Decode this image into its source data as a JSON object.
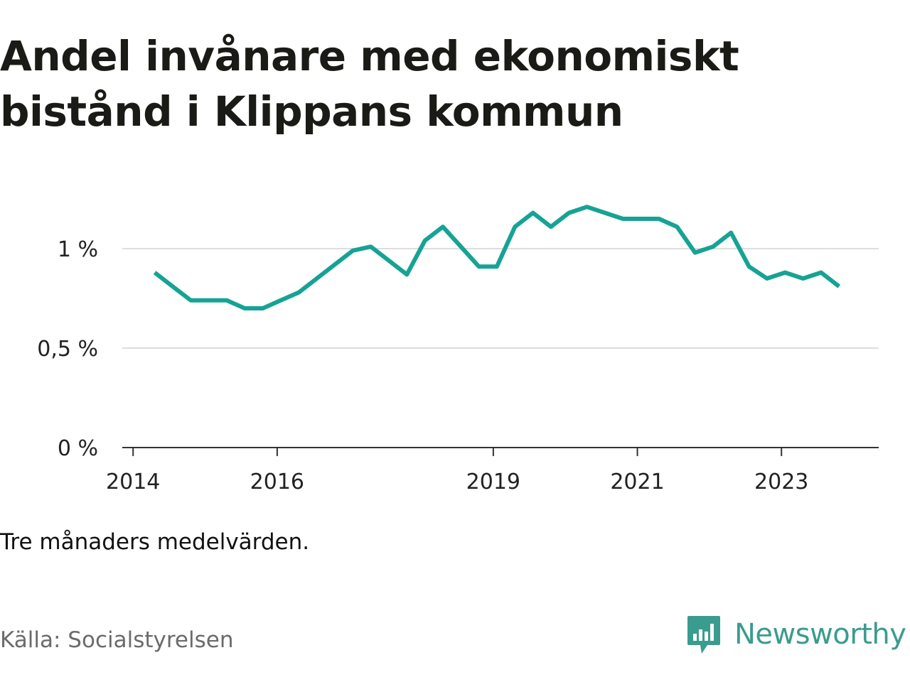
{
  "title": "Andel invånare med ekonomiskt bistånd i Klippans kommun",
  "note": "Tre månaders medelvärden.",
  "source": "Källa: Socialstyrelsen",
  "brand": {
    "name": "Newsworthy",
    "icon": "newsworthy-logo-icon",
    "color": "#3a9c8e"
  },
  "colors": {
    "line": "#16a394",
    "grid": "#dddddd",
    "axis": "#333333"
  },
  "chart_data": {
    "type": "line",
    "title": "Andel invånare med ekonomiskt bistånd i Klippans kommun",
    "xlabel": "",
    "ylabel": "",
    "ylim": [
      0,
      1.25
    ],
    "grid": true,
    "y_ticks": [
      {
        "value": 0,
        "label": "0 %"
      },
      {
        "value": 0.5,
        "label": "0,5 %"
      },
      {
        "value": 1,
        "label": "1 %"
      }
    ],
    "x_ticks": [
      {
        "value": 2014,
        "label": "2014"
      },
      {
        "value": 2016,
        "label": "2016"
      },
      {
        "value": 2019,
        "label": "2019"
      },
      {
        "value": 2021,
        "label": "2021"
      },
      {
        "value": 2023,
        "label": "2023"
      }
    ],
    "xlim": [
      2013.85,
      2024.35
    ],
    "series": [
      {
        "x": [
          2014.3,
          2014.55,
          2014.8,
          2015.05,
          2015.3,
          2015.55,
          2015.8,
          2016.05,
          2016.3,
          2016.55,
          2016.8,
          2017.05,
          2017.3,
          2017.55,
          2017.8,
          2018.05,
          2018.3,
          2018.55,
          2018.8,
          2019.05,
          2019.3,
          2019.55,
          2019.8,
          2020.05,
          2020.3,
          2020.55,
          2020.8,
          2021.05,
          2021.3,
          2021.55,
          2021.8,
          2022.05,
          2022.3,
          2022.55,
          2022.8,
          2023.05,
          2023.3,
          2023.55,
          2023.8
        ],
        "y": [
          0.88,
          0.81,
          0.74,
          0.74,
          0.74,
          0.7,
          0.7,
          0.74,
          0.78,
          0.85,
          0.92,
          0.99,
          1.01,
          0.94,
          0.87,
          1.04,
          1.11,
          1.01,
          0.91,
          0.91,
          1.11,
          1.18,
          1.11,
          1.18,
          1.21,
          1.18,
          1.15,
          1.15,
          1.15,
          1.11,
          0.98,
          1.01,
          1.08,
          0.91,
          0.85,
          0.88,
          0.85,
          0.88,
          0.81
        ]
      }
    ]
  }
}
